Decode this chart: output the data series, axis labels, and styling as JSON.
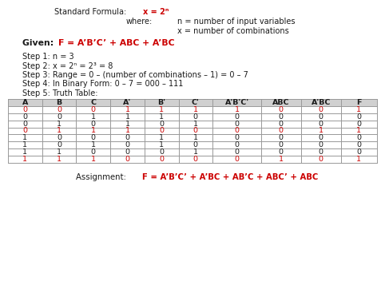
{
  "bg_color": "#ffffff",
  "red_color": "#cc0000",
  "black_color": "#1a1a1a",
  "gray_color": "#555555",
  "table_line_color": "#999999",
  "header_bg": "#d4d4d4",
  "given_formula": "F = A’B’C’ + ABC + A’BC",
  "steps": [
    "Step 1: n = 3",
    "Step 2: x = 2ⁿ = 2³ = 8",
    "Step 3: Range = 0 – (number of combinations – 1) = 0 – 7",
    "Step 4: In Binary Form: 0 – 7 = 000 – 111",
    "Step 5: Truth Table:"
  ],
  "headers": [
    "A",
    "B",
    "C",
    "A'",
    "B'",
    "C'",
    "A'B'C'",
    "ABC",
    "A'BC",
    "F"
  ],
  "table_data": [
    [
      0,
      0,
      0,
      1,
      1,
      1,
      1,
      0,
      0,
      1
    ],
    [
      0,
      0,
      1,
      1,
      1,
      0,
      0,
      0,
      0,
      0
    ],
    [
      0,
      1,
      0,
      1,
      0,
      1,
      0,
      0,
      0,
      0
    ],
    [
      0,
      1,
      1,
      1,
      0,
      0,
      0,
      0,
      1,
      1
    ],
    [
      1,
      0,
      0,
      0,
      1,
      1,
      0,
      0,
      0,
      0
    ],
    [
      1,
      0,
      1,
      0,
      1,
      0,
      0,
      0,
      0,
      0
    ],
    [
      1,
      1,
      0,
      0,
      0,
      1,
      0,
      0,
      0,
      0
    ],
    [
      1,
      1,
      1,
      0,
      0,
      0,
      0,
      1,
      0,
      1
    ]
  ],
  "highlight_rows": [
    0,
    3,
    7
  ],
  "assignment_formula": "F = A’B’C’ + A’BC + AB’C + ABC’ + ABC",
  "where_n": "n = number of input variables",
  "where_x": "x = number of combinations"
}
